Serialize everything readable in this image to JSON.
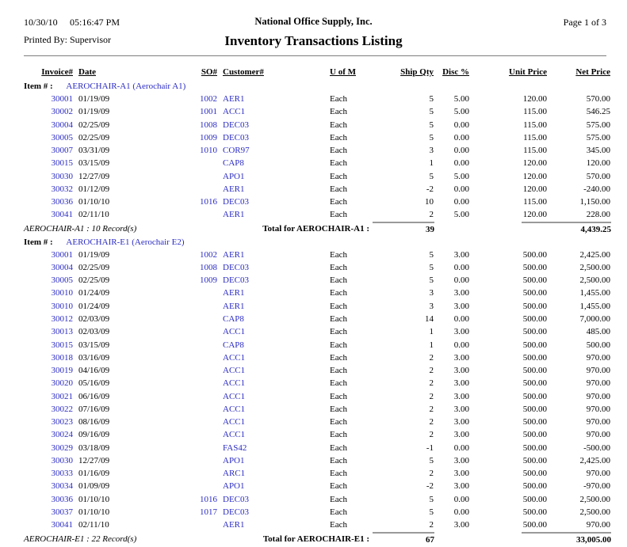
{
  "page": {
    "date": "10/30/10",
    "time": "05:16:47 PM",
    "company": "National Office Supply, Inc.",
    "page_info": "Page 1 of 3",
    "printed_by": "Printed By: Supervisor",
    "title": "Inventory Transactions Listing"
  },
  "colors": {
    "link_blue": "#2b2bc4",
    "rule_gray": "#9a9a9a",
    "text": "#000000",
    "background": "#ffffff"
  },
  "columns": [
    "Invoice#",
    "Date",
    "SO#",
    "Customer#",
    "U of M",
    "Ship Qty",
    "Disc %",
    "Unit Price",
    "Net Price"
  ],
  "item_label": "Item # :",
  "sections": [
    {
      "item_name": "AEROCHAIR-A1 (Aerochair A1)",
      "rows": [
        [
          "30001",
          "01/19/09",
          "1002",
          "AER1",
          "Each",
          "5",
          "5.00",
          "120.00",
          "570.00"
        ],
        [
          "30002",
          "01/19/09",
          "1001",
          "ACC1",
          "Each",
          "5",
          "5.00",
          "115.00",
          "546.25"
        ],
        [
          "30004",
          "02/25/09",
          "1008",
          "DEC03",
          "Each",
          "5",
          "0.00",
          "115.00",
          "575.00"
        ],
        [
          "30005",
          "02/25/09",
          "1009",
          "DEC03",
          "Each",
          "5",
          "0.00",
          "115.00",
          "575.00"
        ],
        [
          "30007",
          "03/31/09",
          "1010",
          "COR97",
          "Each",
          "3",
          "0.00",
          "115.00",
          "345.00"
        ],
        [
          "30015",
          "03/15/09",
          "",
          "CAP8",
          "Each",
          "1",
          "0.00",
          "120.00",
          "120.00"
        ],
        [
          "30030",
          "12/27/09",
          "",
          "APO1",
          "Each",
          "5",
          "5.00",
          "120.00",
          "570.00"
        ],
        [
          "30032",
          "01/12/09",
          "",
          "AER1",
          "Each",
          "-2",
          "0.00",
          "120.00",
          "-240.00"
        ],
        [
          "30036",
          "01/10/10",
          "1016",
          "DEC03",
          "Each",
          "10",
          "0.00",
          "115.00",
          "1,150.00"
        ],
        [
          "30041",
          "02/11/10",
          "",
          "AER1",
          "Each",
          "2",
          "5.00",
          "120.00",
          "228.00"
        ]
      ],
      "record_count": "AEROCHAIR-A1 : 10 Record(s)",
      "total_label": "Total for AEROCHAIR-A1 :",
      "total_qty": "39",
      "total_net": "4,439.25"
    },
    {
      "item_name": "AEROCHAIR-E1 (Aerochair E2)",
      "rows": [
        [
          "30001",
          "01/19/09",
          "1002",
          "AER1",
          "Each",
          "5",
          "3.00",
          "500.00",
          "2,425.00"
        ],
        [
          "30004",
          "02/25/09",
          "1008",
          "DEC03",
          "Each",
          "5",
          "0.00",
          "500.00",
          "2,500.00"
        ],
        [
          "30005",
          "02/25/09",
          "1009",
          "DEC03",
          "Each",
          "5",
          "0.00",
          "500.00",
          "2,500.00"
        ],
        [
          "30010",
          "01/24/09",
          "",
          "AER1",
          "Each",
          "3",
          "3.00",
          "500.00",
          "1,455.00"
        ],
        [
          "30010",
          "01/24/09",
          "",
          "AER1",
          "Each",
          "3",
          "3.00",
          "500.00",
          "1,455.00"
        ],
        [
          "30012",
          "02/03/09",
          "",
          "CAP8",
          "Each",
          "14",
          "0.00",
          "500.00",
          "7,000.00"
        ],
        [
          "30013",
          "02/03/09",
          "",
          "ACC1",
          "Each",
          "1",
          "3.00",
          "500.00",
          "485.00"
        ],
        [
          "30015",
          "03/15/09",
          "",
          "CAP8",
          "Each",
          "1",
          "0.00",
          "500.00",
          "500.00"
        ],
        [
          "30018",
          "03/16/09",
          "",
          "ACC1",
          "Each",
          "2",
          "3.00",
          "500.00",
          "970.00"
        ],
        [
          "30019",
          "04/16/09",
          "",
          "ACC1",
          "Each",
          "2",
          "3.00",
          "500.00",
          "970.00"
        ],
        [
          "30020",
          "05/16/09",
          "",
          "ACC1",
          "Each",
          "2",
          "3.00",
          "500.00",
          "970.00"
        ],
        [
          "30021",
          "06/16/09",
          "",
          "ACC1",
          "Each",
          "2",
          "3.00",
          "500.00",
          "970.00"
        ],
        [
          "30022",
          "07/16/09",
          "",
          "ACC1",
          "Each",
          "2",
          "3.00",
          "500.00",
          "970.00"
        ],
        [
          "30023",
          "08/16/09",
          "",
          "ACC1",
          "Each",
          "2",
          "3.00",
          "500.00",
          "970.00"
        ],
        [
          "30024",
          "09/16/09",
          "",
          "ACC1",
          "Each",
          "2",
          "3.00",
          "500.00",
          "970.00"
        ],
        [
          "30029",
          "03/18/09",
          "",
          "FAS42",
          "Each",
          "-1",
          "0.00",
          "500.00",
          "-500.00"
        ],
        [
          "30030",
          "12/27/09",
          "",
          "APO1",
          "Each",
          "5",
          "3.00",
          "500.00",
          "2,425.00"
        ],
        [
          "30033",
          "01/16/09",
          "",
          "ARC1",
          "Each",
          "2",
          "3.00",
          "500.00",
          "970.00"
        ],
        [
          "30034",
          "01/09/09",
          "",
          "APO1",
          "Each",
          "-2",
          "3.00",
          "500.00",
          "-970.00"
        ],
        [
          "30036",
          "01/10/10",
          "1016",
          "DEC03",
          "Each",
          "5",
          "0.00",
          "500.00",
          "2,500.00"
        ],
        [
          "30037",
          "01/10/10",
          "1017",
          "DEC03",
          "Each",
          "5",
          "0.00",
          "500.00",
          "2,500.00"
        ],
        [
          "30041",
          "02/11/10",
          "",
          "AER1",
          "Each",
          "2",
          "3.00",
          "500.00",
          "970.00"
        ]
      ],
      "record_count": "AEROCHAIR-E1 : 22 Record(s)",
      "total_label": "Total for AEROCHAIR-E1 :",
      "total_qty": "67",
      "total_net": "33,005.00"
    }
  ]
}
